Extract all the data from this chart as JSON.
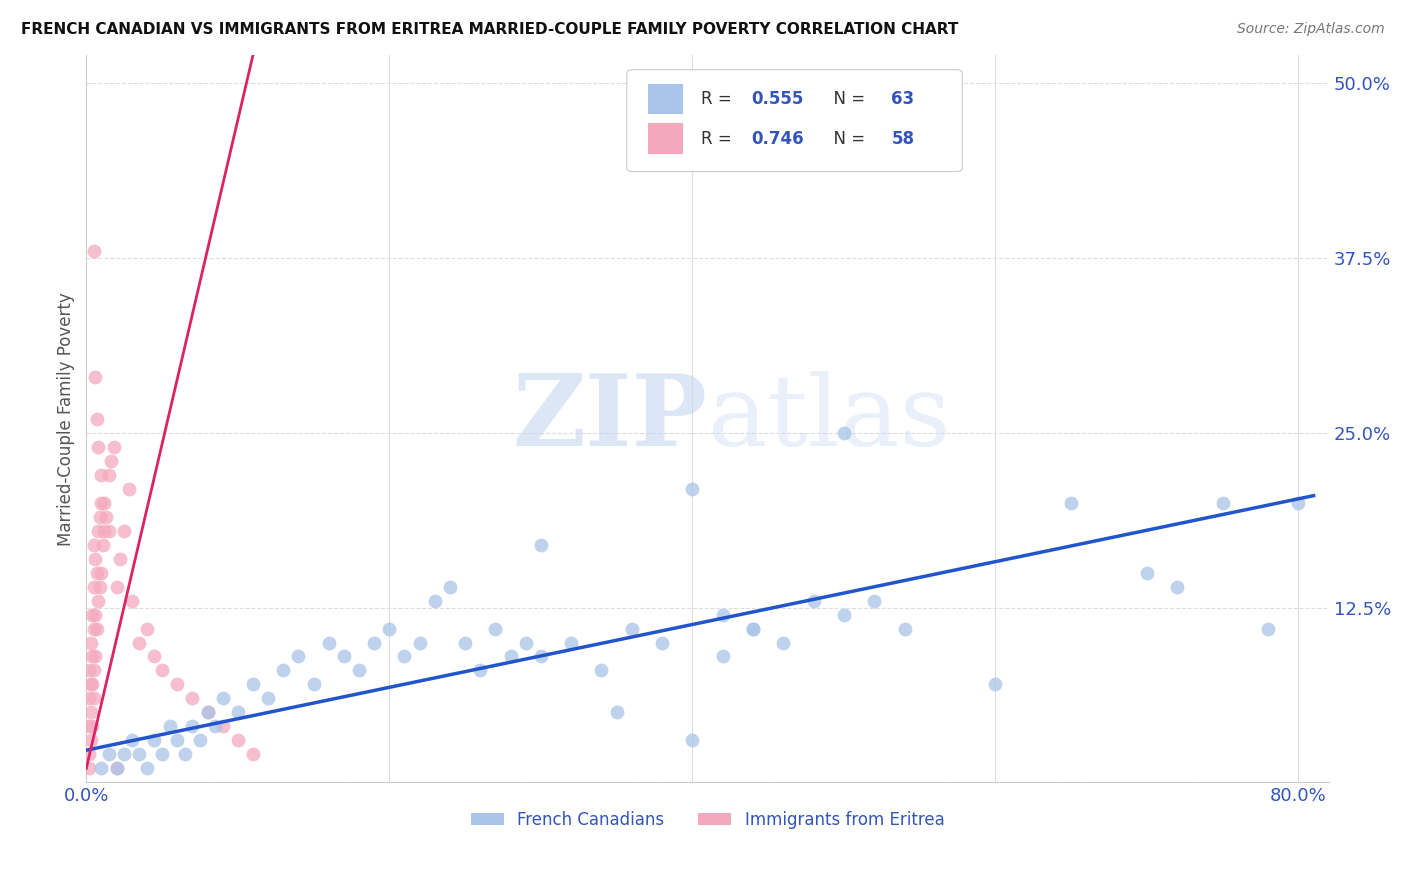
{
  "title": "FRENCH CANADIAN VS IMMIGRANTS FROM ERITREA MARRIED-COUPLE FAMILY POVERTY CORRELATION CHART",
  "source": "Source: ZipAtlas.com",
  "ylabel": "Married-Couple Family Poverty",
  "legend_label1": "French Canadians",
  "legend_label2": "Immigrants from Eritrea",
  "R1": 0.555,
  "N1": 63,
  "R2": 0.746,
  "N2": 58,
  "color1": "#a8c4e8",
  "color2": "#f4a8be",
  "line_color1": "#2255cc",
  "line_color2": "#dd2266",
  "watermark_zip": "ZIP",
  "watermark_atlas": "atlas",
  "xlim": [
    0.0,
    0.82
  ],
  "ylim": [
    0.0,
    0.52
  ],
  "blue_scatter_x": [
    0.01,
    0.015,
    0.02,
    0.025,
    0.03,
    0.035,
    0.04,
    0.045,
    0.05,
    0.055,
    0.06,
    0.065,
    0.07,
    0.075,
    0.08,
    0.085,
    0.09,
    0.1,
    0.11,
    0.12,
    0.13,
    0.14,
    0.15,
    0.16,
    0.17,
    0.18,
    0.19,
    0.2,
    0.21,
    0.22,
    0.23,
    0.24,
    0.25,
    0.26,
    0.27,
    0.28,
    0.29,
    0.3,
    0.32,
    0.34,
    0.36,
    0.38,
    0.4,
    0.42,
    0.44,
    0.46,
    0.48,
    0.5,
    0.52,
    0.54,
    0.42,
    0.44,
    0.5,
    0.6,
    0.65,
    0.7,
    0.72,
    0.75,
    0.78,
    0.8,
    0.3,
    0.35,
    0.4
  ],
  "blue_scatter_y": [
    0.01,
    0.02,
    0.01,
    0.02,
    0.03,
    0.02,
    0.01,
    0.03,
    0.02,
    0.04,
    0.03,
    0.02,
    0.04,
    0.03,
    0.05,
    0.04,
    0.06,
    0.05,
    0.07,
    0.06,
    0.08,
    0.09,
    0.07,
    0.1,
    0.09,
    0.08,
    0.1,
    0.11,
    0.09,
    0.1,
    0.13,
    0.14,
    0.1,
    0.08,
    0.11,
    0.09,
    0.1,
    0.09,
    0.1,
    0.08,
    0.11,
    0.1,
    0.21,
    0.12,
    0.11,
    0.1,
    0.13,
    0.12,
    0.13,
    0.11,
    0.09,
    0.11,
    0.25,
    0.07,
    0.2,
    0.15,
    0.14,
    0.2,
    0.11,
    0.2,
    0.17,
    0.05,
    0.03
  ],
  "pink_scatter_x": [
    0.002,
    0.002,
    0.002,
    0.002,
    0.002,
    0.003,
    0.003,
    0.003,
    0.003,
    0.004,
    0.004,
    0.004,
    0.004,
    0.005,
    0.005,
    0.005,
    0.005,
    0.005,
    0.006,
    0.006,
    0.006,
    0.007,
    0.007,
    0.008,
    0.008,
    0.009,
    0.009,
    0.01,
    0.01,
    0.011,
    0.012,
    0.013,
    0.015,
    0.016,
    0.018,
    0.02,
    0.022,
    0.025,
    0.028,
    0.03,
    0.035,
    0.04,
    0.045,
    0.05,
    0.06,
    0.07,
    0.08,
    0.09,
    0.1,
    0.11,
    0.005,
    0.006,
    0.007,
    0.008,
    0.01,
    0.012,
    0.015,
    0.02
  ],
  "pink_scatter_y": [
    0.01,
    0.02,
    0.04,
    0.06,
    0.08,
    0.03,
    0.05,
    0.07,
    0.1,
    0.04,
    0.07,
    0.09,
    0.12,
    0.06,
    0.08,
    0.11,
    0.14,
    0.17,
    0.09,
    0.12,
    0.16,
    0.11,
    0.15,
    0.13,
    0.18,
    0.14,
    0.19,
    0.15,
    0.2,
    0.17,
    0.18,
    0.19,
    0.22,
    0.23,
    0.24,
    0.14,
    0.16,
    0.18,
    0.21,
    0.13,
    0.1,
    0.11,
    0.09,
    0.08,
    0.07,
    0.06,
    0.05,
    0.04,
    0.03,
    0.02,
    0.38,
    0.29,
    0.26,
    0.24,
    0.22,
    0.2,
    0.18,
    0.01
  ],
  "background_color": "#ffffff",
  "grid_color": "#dddddd",
  "title_color": "#111111",
  "tick_label_color": "#3355bb"
}
